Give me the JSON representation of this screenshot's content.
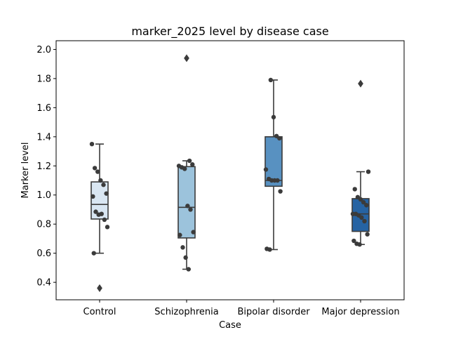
{
  "chart_data": {
    "type": "box",
    "title": "marker_2025 level by disease case",
    "xlabel": "Case",
    "ylabel": "Marker level",
    "ylim": [
      0.28,
      2.06
    ],
    "yticks": [
      "0.4",
      "0.6",
      "0.8",
      "1.0",
      "1.2",
      "1.4",
      "1.6",
      "1.8",
      "2.0"
    ],
    "ytick_values": [
      0.4,
      0.6,
      0.8,
      1.0,
      1.2,
      1.4,
      1.6,
      1.8,
      2.0
    ],
    "grid": false,
    "legend": "none",
    "categories": [
      "Control",
      "Schizophrenia",
      "Bipolar disorder",
      "Major depression"
    ],
    "colors": [
      "#d9e6f2",
      "#9cc3dc",
      "#5891c1",
      "#2663a3"
    ],
    "edge_color": "#3b3b3b",
    "point_color": "#3b3b3b",
    "boxes": [
      {
        "q1": 0.835,
        "median": 0.935,
        "q3": 1.09,
        "whisker_low": 0.6,
        "whisker_high": 1.35,
        "outliers": [
          0.36
        ]
      },
      {
        "q1": 0.705,
        "median": 0.915,
        "q3": 1.195,
        "whisker_low": 0.49,
        "whisker_high": 1.235,
        "outliers": [
          1.94
        ]
      },
      {
        "q1": 1.06,
        "median": 1.1,
        "q3": 1.4,
        "whisker_low": 0.625,
        "whisker_high": 1.79,
        "outliers": []
      },
      {
        "q1": 0.75,
        "median": 0.87,
        "q3": 0.975,
        "whisker_low": 0.66,
        "whisker_high": 1.16,
        "outliers": [
          1.765
        ]
      }
    ],
    "points": [
      [
        1.35,
        1.185,
        1.16,
        1.1,
        1.07,
        1.01,
        0.99,
        0.885,
        0.865,
        0.87,
        0.83,
        0.78,
        0.6
      ],
      [
        1.235,
        1.21,
        1.2,
        1.19,
        1.18,
        0.925,
        0.9,
        0.745,
        0.725,
        0.64,
        0.57,
        0.49
      ],
      [
        1.79,
        1.535,
        1.405,
        1.39,
        1.175,
        1.11,
        1.1,
        1.1,
        1.1,
        1.025,
        0.63,
        0.625
      ],
      [
        1.16,
        1.04,
        0.985,
        0.97,
        0.95,
        0.93,
        0.87,
        0.87,
        0.86,
        0.845,
        0.82,
        0.73,
        0.685,
        0.665,
        0.66
      ]
    ]
  }
}
